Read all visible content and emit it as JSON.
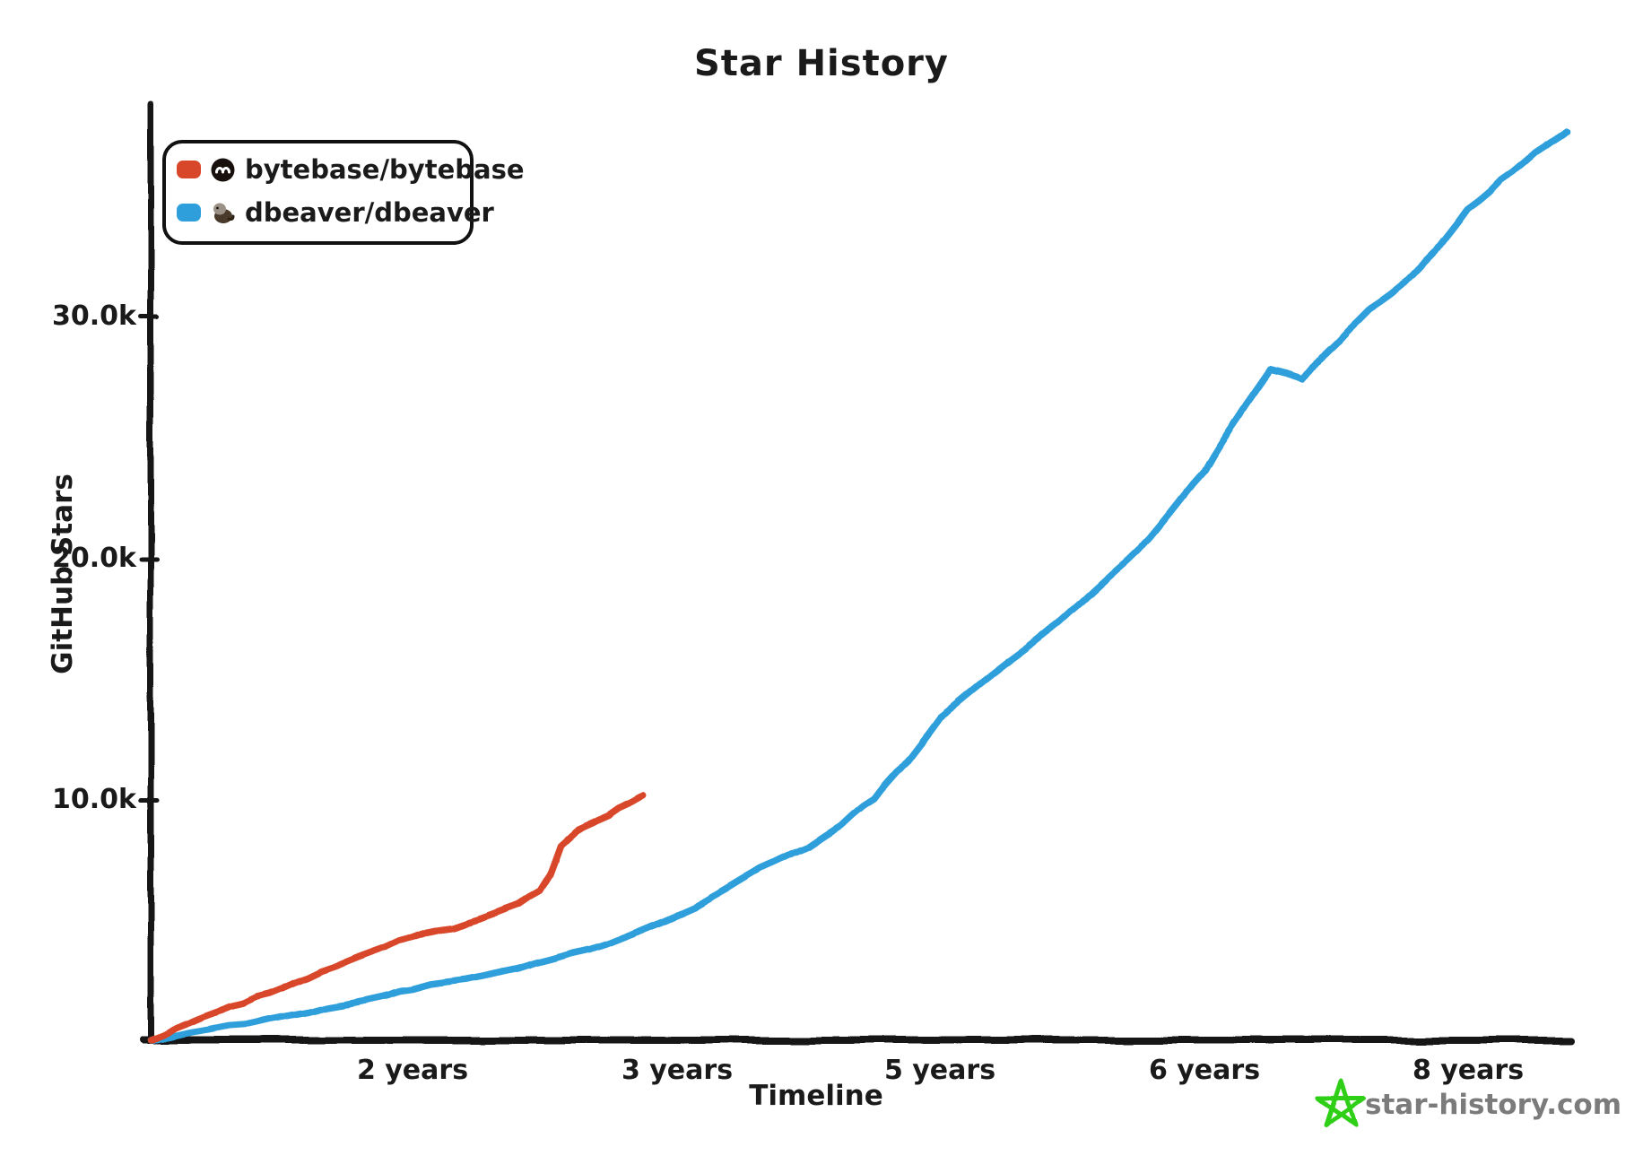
{
  "title": "Star History",
  "legend": {
    "items": [
      {
        "label": "bytebase/bytebase",
        "color": "#d9472b",
        "icon": "bytebase-avatar"
      },
      {
        "label": "dbeaver/dbeaver",
        "color": "#2e9fdb",
        "icon": "dbeaver-avatar"
      }
    ]
  },
  "y_axis": {
    "title": "GitHub Stars",
    "tick_labels": [
      "30.0k",
      "20.0k",
      "10.0k"
    ]
  },
  "x_axis": {
    "title": "Timeline",
    "tick_labels": [
      "2 years",
      "3 years",
      "5 years",
      "6 years",
      "8 years"
    ]
  },
  "watermark": {
    "text": "star-history.com",
    "icon": "green-star-doodle",
    "icon_color": "#2fcf14",
    "text_color": "#7b7b7b"
  },
  "chart_data": {
    "type": "line",
    "title": "Star History",
    "xlabel": "Timeline",
    "ylabel": "GitHub Stars",
    "x_unit": "repo age in years",
    "y_ticks": [
      10000,
      20000,
      30000
    ],
    "x_tick_years": [
      2,
      3,
      5,
      6,
      8
    ],
    "ylim": [
      0,
      39000
    ],
    "grid": false,
    "legend_position": "top-left",
    "series": [
      {
        "name": "bytebase/bytebase",
        "color": "#d9472b",
        "points": [
          [
            0,
            0
          ],
          [
            0.2,
            500
          ],
          [
            0.4,
            950
          ],
          [
            0.6,
            1400
          ],
          [
            0.8,
            1800
          ],
          [
            1.0,
            2150
          ],
          [
            1.2,
            2600
          ],
          [
            1.4,
            3050
          ],
          [
            1.6,
            3500
          ],
          [
            1.8,
            3900
          ],
          [
            2.0,
            4300
          ],
          [
            2.15,
            4700
          ],
          [
            2.3,
            5250
          ],
          [
            2.4,
            5650
          ],
          [
            2.48,
            6200
          ],
          [
            2.52,
            6900
          ],
          [
            2.56,
            8100
          ],
          [
            2.62,
            8700
          ],
          [
            2.7,
            9100
          ],
          [
            2.78,
            9600
          ],
          [
            2.83,
            9850
          ],
          [
            2.87,
            10100
          ]
        ]
      },
      {
        "name": "dbeaver/dbeaver",
        "color": "#2e9fdb",
        "points": [
          [
            0,
            0
          ],
          [
            0.3,
            300
          ],
          [
            0.6,
            600
          ],
          [
            0.9,
            850
          ],
          [
            1.2,
            1150
          ],
          [
            1.5,
            1500
          ],
          [
            1.8,
            1850
          ],
          [
            2.0,
            2100
          ],
          [
            2.2,
            2500
          ],
          [
            2.4,
            2950
          ],
          [
            2.6,
            3600
          ],
          [
            2.8,
            4300
          ],
          [
            3.0,
            5200
          ],
          [
            3.25,
            5900
          ],
          [
            3.5,
            6700
          ],
          [
            3.75,
            7400
          ],
          [
            4.0,
            8000
          ],
          [
            4.25,
            8900
          ],
          [
            4.5,
            10000
          ],
          [
            4.75,
            11600
          ],
          [
            5.0,
            13400
          ],
          [
            5.25,
            15600
          ],
          [
            5.5,
            17800
          ],
          [
            5.75,
            20300
          ],
          [
            6.0,
            23600
          ],
          [
            6.25,
            25800
          ],
          [
            6.5,
            27800
          ],
          [
            6.75,
            27400
          ],
          [
            7.0,
            28900
          ],
          [
            7.25,
            30300
          ],
          [
            7.5,
            31300
          ],
          [
            7.75,
            32700
          ],
          [
            8.0,
            34500
          ],
          [
            8.25,
            35700
          ],
          [
            8.5,
            36800
          ],
          [
            8.75,
            37700
          ]
        ]
      }
    ]
  }
}
